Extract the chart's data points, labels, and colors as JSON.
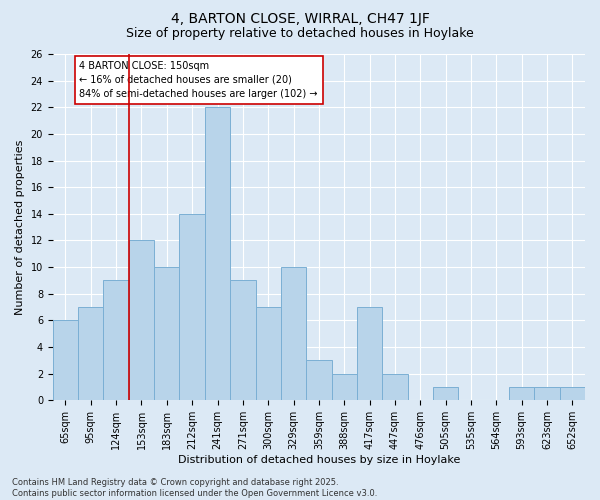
{
  "title1": "4, BARTON CLOSE, WIRRAL, CH47 1JF",
  "title2": "Size of property relative to detached houses in Hoylake",
  "xlabel": "Distribution of detached houses by size in Hoylake",
  "ylabel": "Number of detached properties",
  "categories": [
    "65sqm",
    "95sqm",
    "124sqm",
    "153sqm",
    "183sqm",
    "212sqm",
    "241sqm",
    "271sqm",
    "300sqm",
    "329sqm",
    "359sqm",
    "388sqm",
    "417sqm",
    "447sqm",
    "476sqm",
    "505sqm",
    "535sqm",
    "564sqm",
    "593sqm",
    "623sqm",
    "652sqm"
  ],
  "values": [
    6,
    7,
    9,
    12,
    10,
    14,
    22,
    9,
    7,
    10,
    3,
    2,
    7,
    2,
    0,
    1,
    0,
    0,
    1,
    1,
    1
  ],
  "bar_color": "#b8d4ea",
  "bar_edge_color": "#7bafd4",
  "vline_index": 3,
  "vline_color": "#cc0000",
  "annotation_text": "4 BARTON CLOSE: 150sqm\n← 16% of detached houses are smaller (20)\n84% of semi-detached houses are larger (102) →",
  "annotation_box_color": "#ffffff",
  "annotation_border_color": "#cc0000",
  "ylim": [
    0,
    26
  ],
  "yticks": [
    0,
    2,
    4,
    6,
    8,
    10,
    12,
    14,
    16,
    18,
    20,
    22,
    24,
    26
  ],
  "bg_color": "#dce9f5",
  "plot_bg_color": "#dce9f5",
  "grid_color": "#ffffff",
  "footer_text": "Contains HM Land Registry data © Crown copyright and database right 2025.\nContains public sector information licensed under the Open Government Licence v3.0.",
  "title1_fontsize": 10,
  "title2_fontsize": 9,
  "axis_label_fontsize": 8,
  "tick_fontsize": 7,
  "annotation_fontsize": 7,
  "footer_fontsize": 6
}
